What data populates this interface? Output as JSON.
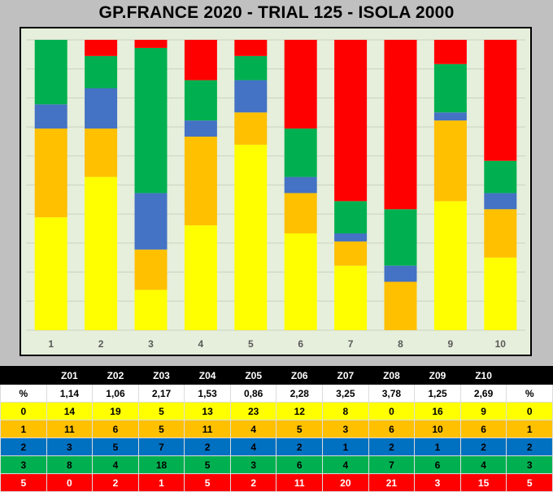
{
  "title": "GP.FRANCE 2020 - TRIAL 125 - ISOLA 2000",
  "colors": {
    "0": "#ffff00",
    "1": "#ffc000",
    "2": "#4472c4",
    "3": "#00b050",
    "5": "#ff0000",
    "row2_bg": "#0070c0"
  },
  "chart_data": {
    "type": "bar",
    "stacked": true,
    "normalized": true,
    "title": "GP.FRANCE 2020 - TRIAL 125 - ISOLA 2000",
    "categories": [
      "1",
      "2",
      "3",
      "4",
      "5",
      "6",
      "7",
      "8",
      "9",
      "10"
    ],
    "series": [
      {
        "name": "0",
        "values": [
          14,
          19,
          5,
          13,
          23,
          12,
          8,
          0,
          16,
          9
        ]
      },
      {
        "name": "1",
        "values": [
          11,
          6,
          5,
          11,
          4,
          5,
          3,
          6,
          10,
          6
        ]
      },
      {
        "name": "2",
        "values": [
          3,
          5,
          7,
          2,
          4,
          2,
          1,
          2,
          1,
          2
        ]
      },
      {
        "name": "3",
        "values": [
          8,
          4,
          18,
          5,
          3,
          6,
          4,
          7,
          6,
          4
        ]
      },
      {
        "name": "5",
        "values": [
          0,
          2,
          1,
          5,
          2,
          11,
          20,
          21,
          3,
          15
        ]
      }
    ],
    "ylim": [
      0,
      36
    ],
    "grid": true,
    "legend": "none"
  },
  "table": {
    "header": [
      "",
      "Z01",
      "Z02",
      "Z03",
      "Z04",
      "Z05",
      "Z06",
      "Z07",
      "Z08",
      "Z09",
      "Z10",
      ""
    ],
    "pct_row": [
      "%",
      "1,14",
      "1,06",
      "2,17",
      "1,53",
      "0,86",
      "2,28",
      "3,25",
      "3,78",
      "1,25",
      "2,69",
      "%"
    ],
    "rows": [
      {
        "label": "0",
        "values": [
          "14",
          "19",
          "5",
          "13",
          "23",
          "12",
          "8",
          "0",
          "16",
          "9"
        ],
        "end": "0"
      },
      {
        "label": "1",
        "values": [
          "11",
          "6",
          "5",
          "11",
          "4",
          "5",
          "3",
          "6",
          "10",
          "6"
        ],
        "end": "1"
      },
      {
        "label": "2",
        "values": [
          "3",
          "5",
          "7",
          "2",
          "4",
          "2",
          "1",
          "2",
          "1",
          "2"
        ],
        "end": "2"
      },
      {
        "label": "3",
        "values": [
          "8",
          "4",
          "18",
          "5",
          "3",
          "6",
          "4",
          "7",
          "6",
          "4"
        ],
        "end": "3"
      },
      {
        "label": "5",
        "values": [
          "0",
          "2",
          "1",
          "5",
          "2",
          "11",
          "20",
          "21",
          "3",
          "15"
        ],
        "end": "5"
      }
    ]
  }
}
